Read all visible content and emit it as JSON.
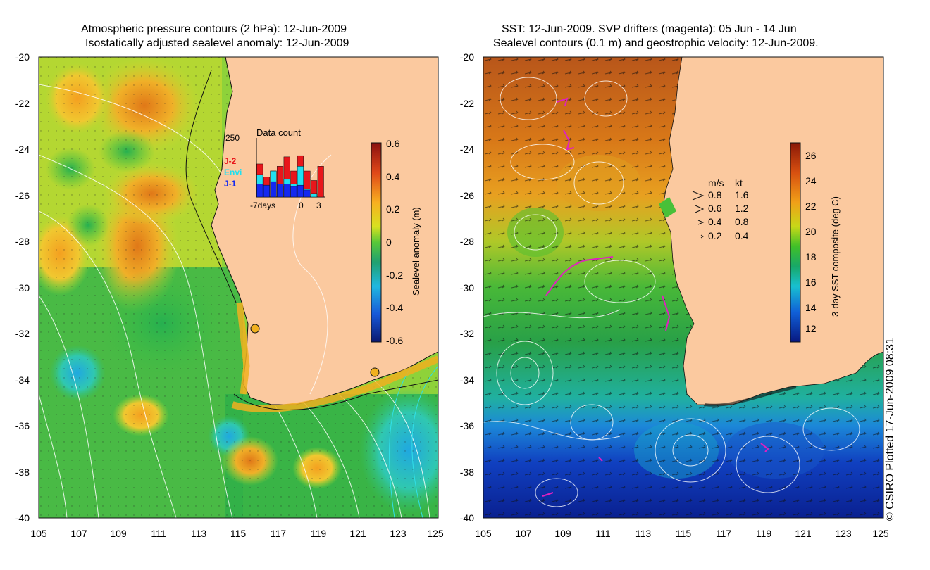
{
  "left_panel": {
    "title_line1": "Atmospheric pressure contours (2 hPa): 12-Jun-2009",
    "title_line2": "Isostatically adjusted sealevel anomaly: 12-Jun-2009",
    "lat_labels": [
      "-20",
      "-22",
      "-24",
      "-26",
      "-28",
      "-30",
      "-32",
      "-34",
      "-36",
      "-38",
      "-40"
    ],
    "lon_labels": [
      "105",
      "107",
      "109",
      "111",
      "113",
      "115",
      "117",
      "119",
      "121",
      "123",
      "125"
    ],
    "colorbar": {
      "label": "Sealevel anomaly (m)",
      "ticks": [
        "0.6",
        "0.4",
        "0.2",
        "0",
        "-0.2",
        "-0.4",
        "-0.6"
      ]
    },
    "inset": {
      "title": "Data count",
      "ymax": "250",
      "xlabels": [
        "-7days",
        "0",
        "3"
      ],
      "legend": [
        {
          "name": "J-2",
          "color": "#e8161b"
        },
        {
          "name": "Envi",
          "color": "#20e0f0"
        },
        {
          "name": "J-1",
          "color": "#1428f0"
        }
      ],
      "bars_j1": [
        55,
        50,
        65,
        55,
        55,
        45,
        50,
        30,
        0,
        0
      ],
      "bars_envi": [
        95,
        50,
        110,
        45,
        75,
        55,
        130,
        35,
        15,
        0
      ],
      "bars_j2": [
        140,
        85,
        110,
        130,
        170,
        110,
        175,
        110,
        70,
        130
      ]
    }
  },
  "right_panel": {
    "title_line1": "SST: 12-Jun-2009. SVP drifters (magenta): 05 Jun - 14 Jun",
    "title_line2": "Sealevel contours (0.1 m) and geostrophic velocity: 12-Jun-2009.",
    "lat_labels": [
      "-20",
      "-22",
      "-24",
      "-26",
      "-28",
      "-30",
      "-32",
      "-34",
      "-36",
      "-38",
      "-40"
    ],
    "lon_labels": [
      "105",
      "107",
      "109",
      "111",
      "113",
      "115",
      "117",
      "119",
      "121",
      "123",
      "125"
    ],
    "colorbar": {
      "label": "3-day SST composite (deg C)",
      "ticks": [
        "26",
        "24",
        "22",
        "20",
        "18",
        "16",
        "14",
        "12"
      ]
    },
    "velocity_key": {
      "header_ms": "m/s",
      "header_kt": "kt",
      "rows": [
        {
          "ms": "0.8",
          "kt": "1.6"
        },
        {
          "ms": "0.6",
          "kt": "1.2"
        },
        {
          "ms": "0.4",
          "kt": "0.8"
        },
        {
          "ms": "0.2",
          "kt": "0.4"
        }
      ]
    }
  },
  "credit": "© CSIRO Plotted 17-Jun-2009 08:31",
  "colors": {
    "land": "#fbc99f",
    "ocean_warm": "#c8641e",
    "ocean_cool": "#1a9a3c",
    "ocean_cold": "#0a2a9a"
  }
}
